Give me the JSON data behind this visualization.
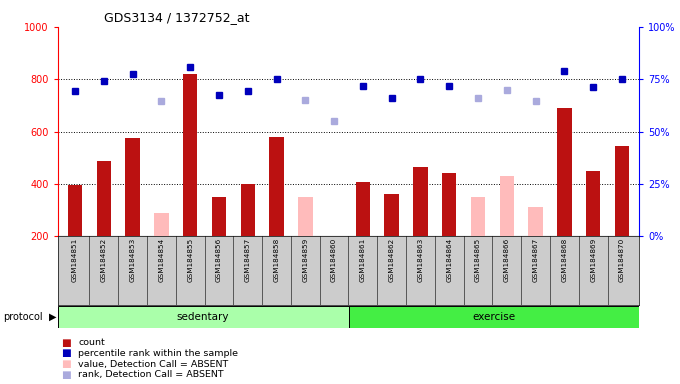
{
  "title": "GDS3134 / 1372752_at",
  "samples": [
    "GSM184851",
    "GSM184852",
    "GSM184853",
    "GSM184854",
    "GSM184855",
    "GSM184856",
    "GSM184857",
    "GSM184858",
    "GSM184859",
    "GSM184860",
    "GSM184861",
    "GSM184862",
    "GSM184863",
    "GSM184864",
    "GSM184865",
    "GSM184866",
    "GSM184867",
    "GSM184868",
    "GSM184869",
    "GSM184870"
  ],
  "count_present": [
    395,
    487,
    575,
    null,
    820,
    348,
    400,
    578,
    null,
    null,
    408,
    362,
    465,
    440,
    null,
    null,
    null,
    688,
    450,
    545
  ],
  "count_absent": [
    null,
    null,
    null,
    290,
    null,
    null,
    null,
    null,
    350,
    null,
    null,
    null,
    null,
    null,
    350,
    430,
    310,
    null,
    null,
    null
  ],
  "rank_present": [
    755,
    795,
    820,
    null,
    845,
    740,
    755,
    800,
    null,
    null,
    775,
    730,
    800,
    775,
    null,
    null,
    null,
    830,
    770,
    800
  ],
  "rank_absent": [
    null,
    null,
    null,
    715,
    null,
    null,
    null,
    null,
    720,
    640,
    null,
    null,
    null,
    null,
    730,
    760,
    718,
    null,
    null,
    null
  ],
  "ylim_left": [
    200,
    1000
  ],
  "yticks_left": [
    200,
    400,
    600,
    800,
    1000
  ],
  "yticks_right": [
    0,
    25,
    50,
    75,
    100
  ],
  "gridlines": [
    400,
    600,
    800
  ],
  "color_count_present": "#bb1111",
  "color_count_absent": "#ffbbbb",
  "color_rank_present": "#0000bb",
  "color_rank_absent": "#aaaadd",
  "color_sedentary": "#aaffaa",
  "color_exercise": "#44ee44",
  "color_sedentary_light": "#ccffcc",
  "color_exercise_light": "#88ff88"
}
